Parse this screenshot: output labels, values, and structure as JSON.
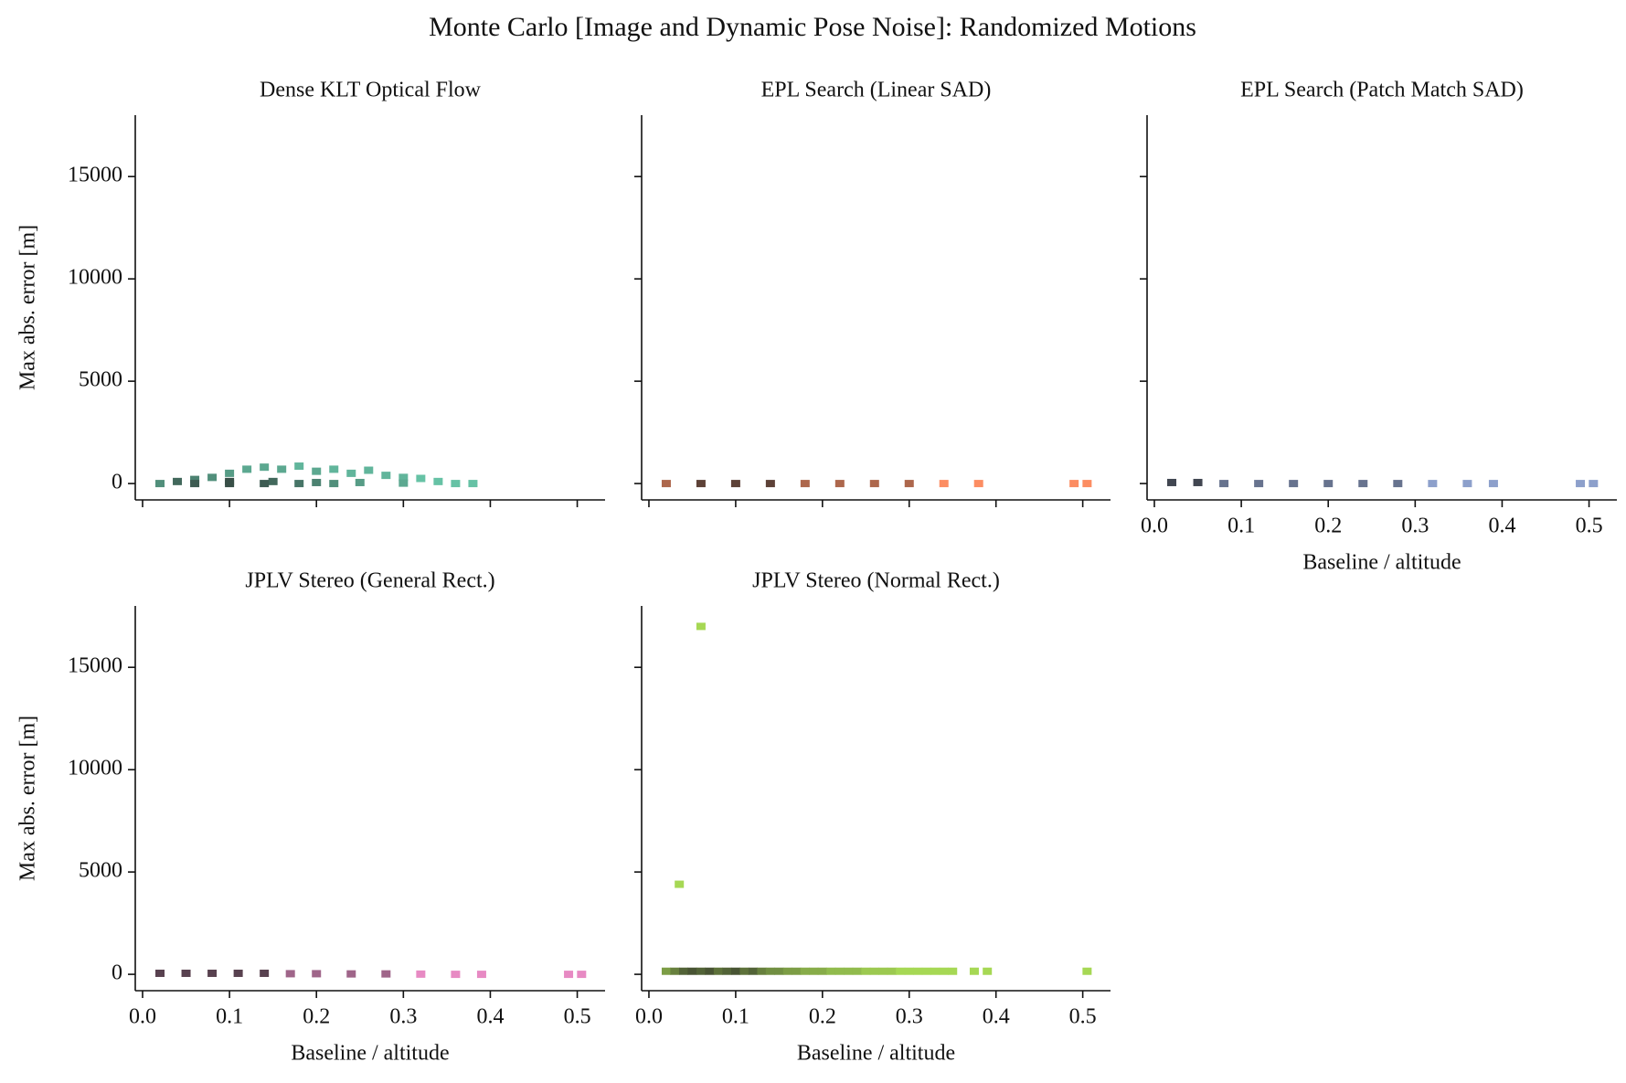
{
  "title": "Monte Carlo [Image and Dynamic Pose Noise]: Randomized Motions",
  "chart_data": [
    {
      "type": "hist2d",
      "title": "Dense KLT Optical Flow",
      "ylabel": "Max abs. error [m]",
      "color": "#66c2a5",
      "xlim": [
        -0.0084,
        0.532
      ],
      "ylim": [
        -800,
        18000
      ],
      "xticks": [
        0.0,
        0.1,
        0.2,
        0.3,
        0.4,
        0.5
      ],
      "yticks": [
        0,
        5000,
        10000,
        15000
      ],
      "x": [
        0.02,
        0.04,
        0.06,
        0.08,
        0.1,
        0.12,
        0.14,
        0.16,
        0.18,
        0.2,
        0.22,
        0.24,
        0.26,
        0.28,
        0.3,
        0.32,
        0.34,
        0.36,
        0.38,
        0.1,
        0.15,
        0.2,
        0.25,
        0.3,
        0.06,
        0.1,
        0.14,
        0.18,
        0.22
      ],
      "y": [
        0,
        100,
        200,
        300,
        500,
        700,
        800,
        700,
        850,
        600,
        700,
        500,
        650,
        400,
        300,
        250,
        100,
        0,
        0,
        100,
        100,
        50,
        50,
        20,
        0,
        0,
        0,
        0,
        0
      ],
      "values": [
        5,
        8,
        6,
        5,
        4,
        3,
        3,
        3,
        2,
        3,
        2,
        2,
        2,
        2,
        2,
        1,
        1,
        1,
        1,
        10,
        8,
        6,
        4,
        3,
        9,
        10,
        9,
        7,
        5
      ]
    },
    {
      "type": "hist2d",
      "title": "EPL Search (Linear SAD)",
      "color": "#fc8d62",
      "xlim": [
        -0.0084,
        0.532
      ],
      "ylim": [
        -800,
        18000
      ],
      "xticks": [
        0.0,
        0.1,
        0.2,
        0.3,
        0.4,
        0.5
      ],
      "yticks": [
        0,
        5000,
        10000,
        15000
      ],
      "x": [
        0.02,
        0.06,
        0.1,
        0.14,
        0.18,
        0.22,
        0.26,
        0.3,
        0.34,
        0.38,
        0.49,
        0.505
      ],
      "y": [
        0,
        0,
        0,
        0,
        0,
        0,
        0,
        0,
        0,
        0,
        0,
        0
      ],
      "values": [
        2,
        3,
        3,
        3,
        2,
        2,
        2,
        2,
        1,
        1,
        1,
        1
      ]
    },
    {
      "type": "hist2d",
      "title": "EPL Search (Patch Match SAD)",
      "xlabel": "Baseline / altitude",
      "color": "#8da0cb",
      "xlim": [
        -0.0084,
        0.532
      ],
      "ylim": [
        -800,
        18000
      ],
      "xticks": [
        0.0,
        0.1,
        0.2,
        0.3,
        0.4,
        0.5
      ],
      "yticks": [
        0,
        5000,
        10000,
        15000
      ],
      "x": [
        0.02,
        0.05,
        0.08,
        0.12,
        0.16,
        0.2,
        0.24,
        0.28,
        0.32,
        0.36,
        0.39,
        0.49,
        0.505
      ],
      "y": [
        50,
        50,
        0,
        0,
        0,
        0,
        0,
        0,
        0,
        0,
        0,
        0,
        0
      ],
      "values": [
        3,
        3,
        2,
        2,
        2,
        2,
        2,
        2,
        1,
        1,
        1,
        1,
        1
      ]
    },
    {
      "type": "hist2d",
      "title": "JPLV Stereo (General Rect.)",
      "xlabel": "Baseline / altitude",
      "ylabel": "Max abs. error [m]",
      "color": "#e78ac3",
      "xlim": [
        -0.0084,
        0.532
      ],
      "ylim": [
        -800,
        18000
      ],
      "xticks": [
        0.0,
        0.1,
        0.2,
        0.3,
        0.4,
        0.5
      ],
      "yticks": [
        0,
        5000,
        10000,
        15000
      ],
      "x": [
        0.02,
        0.05,
        0.08,
        0.11,
        0.14,
        0.17,
        0.2,
        0.24,
        0.28,
        0.32,
        0.36,
        0.39,
        0.49,
        0.505
      ],
      "y": [
        50,
        50,
        50,
        50,
        50,
        30,
        30,
        20,
        20,
        10,
        0,
        0,
        0,
        0
      ],
      "values": [
        3,
        3,
        3,
        3,
        3,
        2,
        2,
        2,
        2,
        1,
        1,
        1,
        1,
        1
      ]
    },
    {
      "type": "hist2d",
      "title": "JPLV Stereo (Normal Rect.)",
      "xlabel": "Baseline / altitude",
      "color": "#a6d854",
      "xlim": [
        -0.0084,
        0.532
      ],
      "ylim": [
        -800,
        18000
      ],
      "xticks": [
        0.0,
        0.1,
        0.2,
        0.3,
        0.4,
        0.5
      ],
      "yticks": [
        0,
        5000,
        10000,
        15000
      ],
      "x": [
        0.02,
        0.03,
        0.04,
        0.05,
        0.06,
        0.07,
        0.08,
        0.09,
        0.1,
        0.11,
        0.12,
        0.13,
        0.14,
        0.15,
        0.16,
        0.17,
        0.18,
        0.19,
        0.2,
        0.21,
        0.22,
        0.23,
        0.24,
        0.25,
        0.26,
        0.27,
        0.28,
        0.29,
        0.3,
        0.31,
        0.32,
        0.33,
        0.34,
        0.35,
        0.375,
        0.39,
        0.505,
        0.06,
        0.035
      ],
      "y": [
        150,
        150,
        150,
        150,
        150,
        150,
        150,
        150,
        150,
        150,
        150,
        150,
        150,
        150,
        150,
        150,
        150,
        150,
        150,
        150,
        150,
        150,
        150,
        150,
        150,
        150,
        150,
        150,
        150,
        150,
        150,
        150,
        150,
        150,
        150,
        150,
        150,
        17000,
        4400
      ],
      "values": [
        5,
        7,
        9,
        10,
        9,
        10,
        8,
        9,
        10,
        8,
        9,
        7,
        6,
        6,
        5,
        5,
        4,
        4,
        4,
        3,
        3,
        3,
        3,
        2,
        2,
        2,
        2,
        1,
        1,
        1,
        1,
        1,
        1,
        1,
        1,
        1,
        1,
        1,
        1
      ]
    }
  ]
}
